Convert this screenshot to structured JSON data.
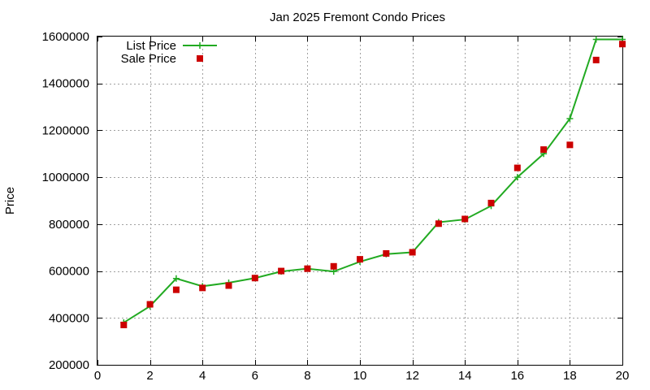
{
  "chart_data": {
    "type": "line",
    "title": "Jan 2025 Fremont Condo Prices",
    "xlabel": "",
    "ylabel": "Price",
    "xlim": [
      0,
      20
    ],
    "ylim": [
      200000,
      1600000
    ],
    "xticks": [
      0,
      2,
      4,
      6,
      8,
      10,
      12,
      14,
      16,
      18,
      20
    ],
    "yticks": [
      200000,
      400000,
      600000,
      800000,
      1000000,
      1200000,
      1400000,
      1600000
    ],
    "grid": true,
    "legend_position": "top-left",
    "series": [
      {
        "name": "List Price",
        "style": "line-with-plus-markers",
        "color": "#22aa22",
        "x": [
          1,
          2,
          3,
          4,
          5,
          6,
          7,
          8,
          9,
          10,
          11,
          12,
          13,
          14,
          15,
          16,
          17,
          18,
          19,
          20
        ],
        "values": [
          380000,
          450000,
          568000,
          535000,
          550000,
          570000,
          598000,
          610000,
          598000,
          640000,
          672000,
          680000,
          808000,
          820000,
          878000,
          1000000,
          1100000,
          1250000,
          1588000,
          1588000
        ]
      },
      {
        "name": "Sale Price",
        "style": "square-markers",
        "color": "#cc0000",
        "x": [
          1,
          2,
          3,
          4,
          5,
          6,
          7,
          8,
          9,
          10,
          11,
          12,
          13,
          14,
          15,
          16,
          17,
          18,
          19,
          20
        ],
        "values": [
          370000,
          458000,
          520000,
          528000,
          538000,
          570000,
          600000,
          610000,
          620000,
          650000,
          675000,
          680000,
          802000,
          822000,
          890000,
          1040000,
          1118000,
          1138000,
          1500000,
          1568000
        ]
      }
    ]
  }
}
